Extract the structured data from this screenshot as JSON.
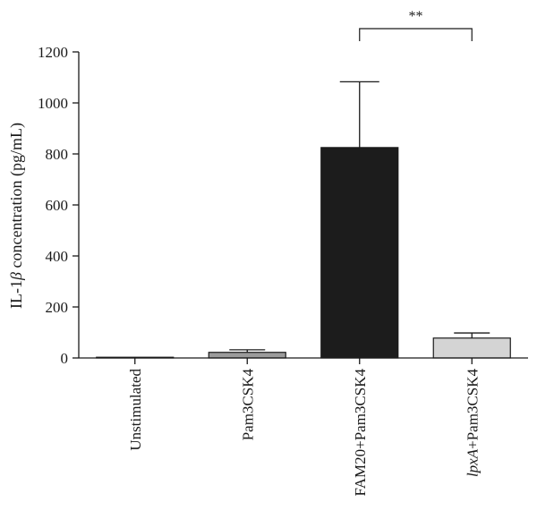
{
  "chart_data": {
    "type": "bar",
    "title": "",
    "ylabel": {
      "prefix": "IL-1",
      "greek": "β",
      "suffix": " concentration (pg/mL)"
    },
    "xlabel": "",
    "ylim": [
      0,
      1200
    ],
    "yticks": [
      0,
      200,
      400,
      600,
      800,
      1000,
      1200
    ],
    "categories": [
      {
        "parts": [
          {
            "text": "Unstimulated",
            "italic": false
          }
        ]
      },
      {
        "parts": [
          {
            "text": "Pam3CSK4",
            "italic": false
          }
        ]
      },
      {
        "parts": [
          {
            "text": "FAM20+Pam3CSK4",
            "italic": false
          }
        ]
      },
      {
        "parts": [
          {
            "text": "lpxA",
            "italic": true
          },
          {
            "text": "+Pam3CSK4",
            "italic": false
          }
        ]
      }
    ],
    "values": [
      2,
      22,
      825,
      78
    ],
    "errors": [
      0,
      10,
      258,
      20
    ],
    "bar_colors": [
      "#ffffff",
      "#9b9b9b",
      "#1c1c1c",
      "#d4d4d4"
    ],
    "significance": [
      {
        "from": 2,
        "to": 3,
        "label": "**"
      }
    ],
    "grid": false,
    "legend": "none"
  }
}
